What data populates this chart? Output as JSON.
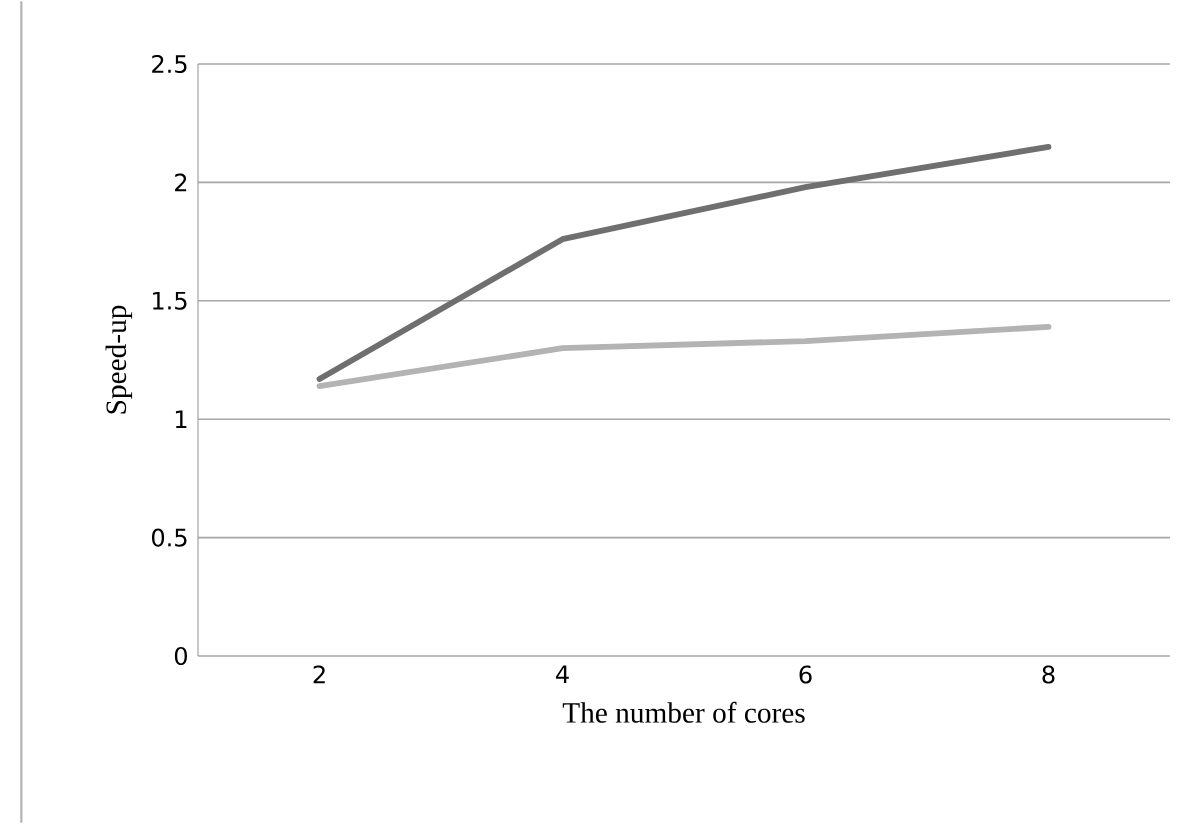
{
  "chart_data": {
    "type": "line",
    "xlabel": "The number of cores",
    "ylabel": "Speed-up",
    "categories": [
      "2",
      "4",
      "6",
      "8"
    ],
    "series": [
      {
        "color": "#6f6f6f",
        "values": [
          1.17,
          1.76,
          1.98,
          2.15
        ]
      },
      {
        "color": "#b3b3b3",
        "values": [
          1.14,
          1.3,
          1.33,
          1.39
        ]
      }
    ],
    "ylim": [
      0,
      2.5
    ],
    "yticks": [
      0,
      0.5,
      1,
      1.5,
      2,
      2.5
    ],
    "grid": "y",
    "marker": "none",
    "line_style": "solid"
  }
}
